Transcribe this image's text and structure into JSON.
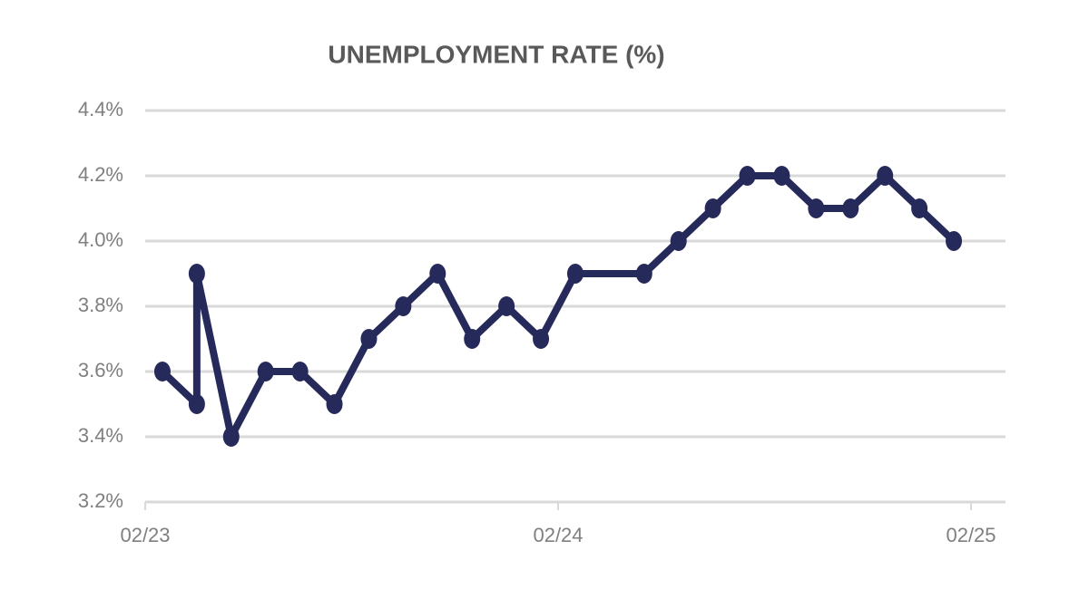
{
  "chart_data": {
    "type": "line",
    "title": "UNEMPLOYMENT RATE (%)",
    "x": [
      "02/23",
      "03/23",
      "03/23",
      "04/23",
      "05/23",
      "06/23",
      "07/23",
      "08/23",
      "09/23",
      "10/23",
      "11/23",
      "12/23",
      "01/24",
      "02/24",
      "04/24",
      "05/24",
      "06/24",
      "07/24",
      "08/24",
      "09/24",
      "10/24",
      "11/24",
      "12/24",
      "01/25"
    ],
    "series": [
      {
        "name": "Unemployment rate",
        "color": "#252a5a",
        "values": [
          3.6,
          3.5,
          3.9,
          3.4,
          3.6,
          3.6,
          3.5,
          3.7,
          3.8,
          3.9,
          3.7,
          3.8,
          3.7,
          3.9,
          3.9,
          4.0,
          4.1,
          4.2,
          4.2,
          4.1,
          4.1,
          4.2,
          4.1,
          4.0
        ]
      }
    ],
    "xlim": [
      "02/23",
      "02/25"
    ],
    "xticks": [
      "02/23",
      "02/24",
      "02/25"
    ],
    "ylim": [
      3.2,
      4.4
    ],
    "yticks": [
      {
        "value": 3.2,
        "label": "3.2%"
      },
      {
        "value": 3.4,
        "label": "3.4%"
      },
      {
        "value": 3.6,
        "label": "3.6%"
      },
      {
        "value": 3.8,
        "label": "3.8%"
      },
      {
        "value": 4.0,
        "label": "4.0%"
      },
      {
        "value": 4.2,
        "label": "4.2%"
      },
      {
        "value": 4.4,
        "label": "4.4%"
      }
    ],
    "grid": true
  }
}
